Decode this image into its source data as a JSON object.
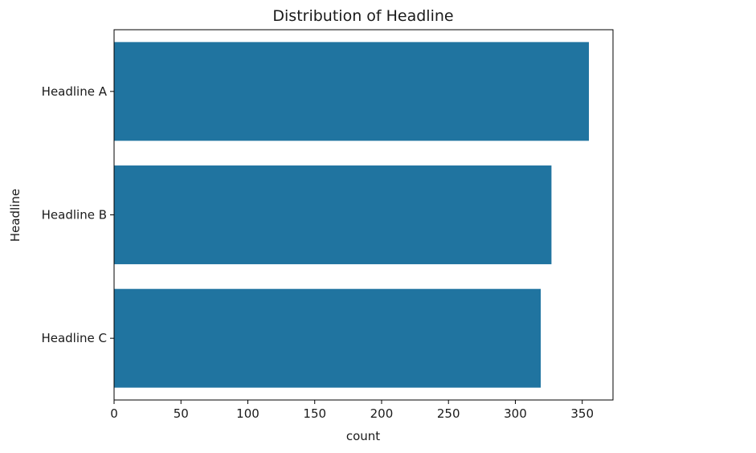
{
  "chart_data": {
    "type": "bar",
    "orientation": "horizontal",
    "title": "Distribution of Headline",
    "xlabel": "count",
    "ylabel": "Headline",
    "categories": [
      "Headline A",
      "Headline B",
      "Headline C"
    ],
    "values": [
      355,
      327,
      319
    ],
    "xlim": [
      0,
      373
    ],
    "xticks": [
      0,
      50,
      100,
      150,
      200,
      250,
      300,
      350
    ],
    "grid": false,
    "bar_color": "#2074a0"
  }
}
